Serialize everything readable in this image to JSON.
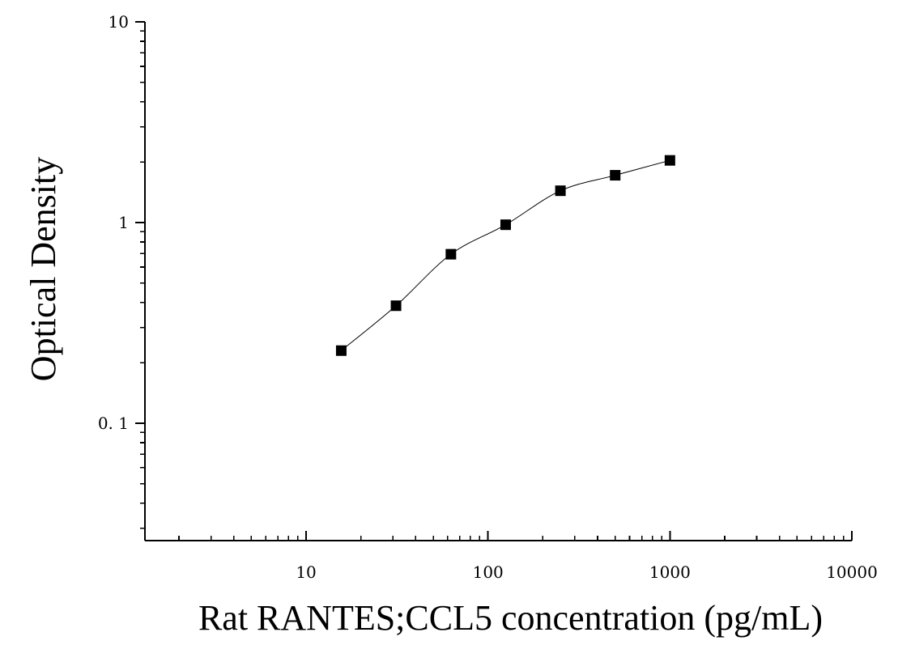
{
  "chart_data": {
    "type": "scatter",
    "title": "",
    "xlabel": "Rat RANTES;CCL5 concentration (pg/mL)",
    "ylabel": "Optical Density",
    "x_scale": "log",
    "y_scale": "log",
    "xlim": [
      1.3,
      10000
    ],
    "ylim": [
      0.026,
      10
    ],
    "x_ticks": [
      10,
      100,
      1000,
      10000
    ],
    "x_tick_labels": [
      "10",
      "100",
      "1000",
      "10000"
    ],
    "y_ticks": [
      0.1,
      1,
      10
    ],
    "y_tick_labels": [
      "0. 1",
      "1",
      "10"
    ],
    "grid": false,
    "legend": "none",
    "fit_curve": true,
    "marker": "square",
    "color": "#000000",
    "x": [
      15.6,
      31.2,
      62.5,
      125,
      250,
      500,
      1000
    ],
    "y": [
      0.23,
      0.385,
      0.695,
      0.975,
      1.44,
      1.72,
      2.04
    ]
  }
}
